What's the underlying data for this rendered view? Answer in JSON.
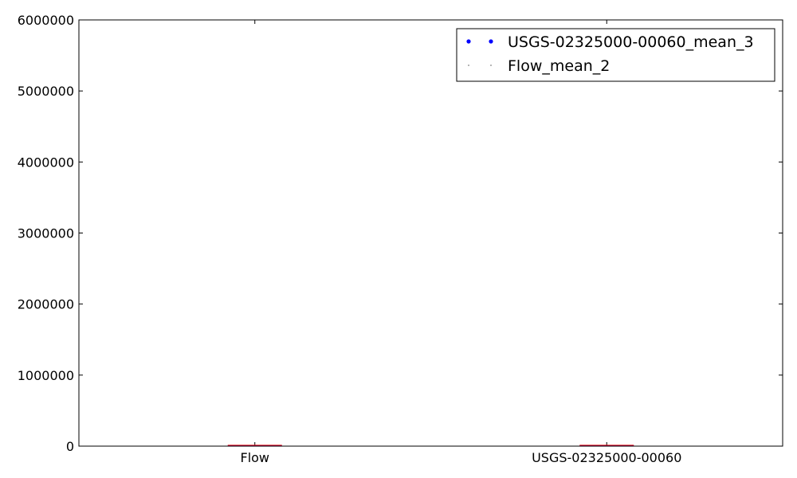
{
  "chart_data": {
    "type": "box",
    "title": "",
    "xlabel": "",
    "ylabel": "",
    "categories": [
      "Flow",
      "USGS-02325000-00060"
    ],
    "ylim": [
      0,
      6000000
    ],
    "yticks": [
      0,
      1000000,
      2000000,
      3000000,
      4000000,
      5000000,
      6000000
    ],
    "ytick_labels": [
      "0",
      "1000000",
      "2000000",
      "3000000",
      "4000000",
      "5000000",
      "6000000"
    ],
    "grid": false,
    "legend_position": "top-right",
    "series": [
      {
        "name": "USGS-02325000-00060_mean_3",
        "marker": "dot",
        "color": "#0000ff"
      },
      {
        "name": "Flow_mean_2",
        "marker": "point",
        "color": "#000000"
      }
    ],
    "box_values": [
      {
        "category": "Flow",
        "approx_max": 0
      },
      {
        "category": "USGS-02325000-00060",
        "approx_max": 0
      }
    ],
    "colors": {
      "median_line": "#ff0000",
      "box_edge": "#0000ff",
      "axes": "#000000"
    }
  }
}
